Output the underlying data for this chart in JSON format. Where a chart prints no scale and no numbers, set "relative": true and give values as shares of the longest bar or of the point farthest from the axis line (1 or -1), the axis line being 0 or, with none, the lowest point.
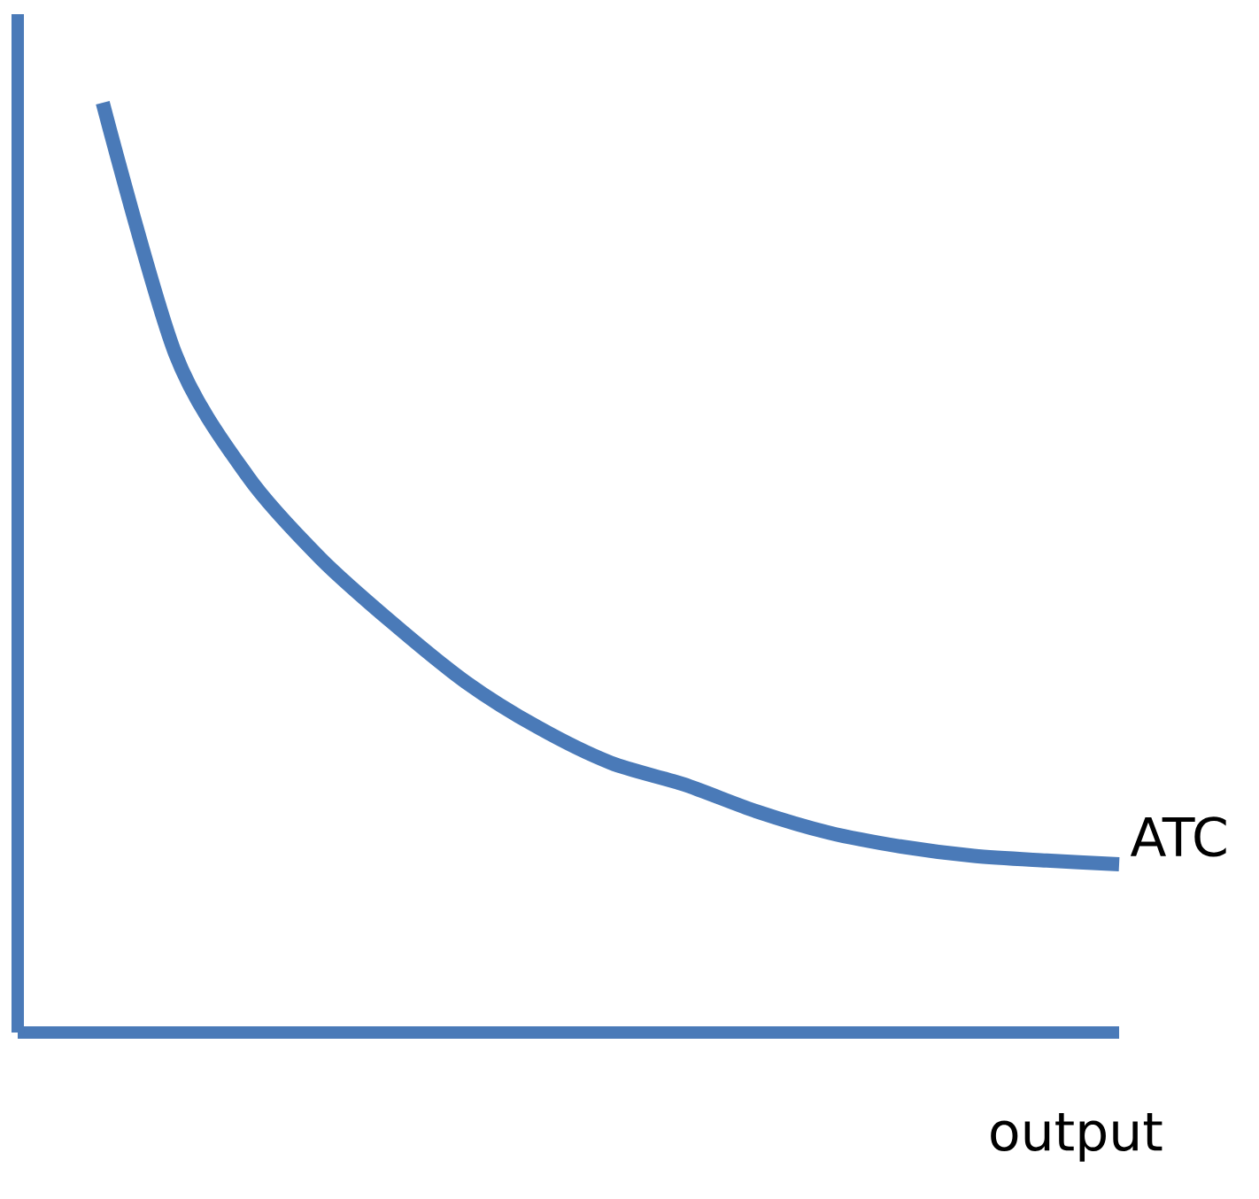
{
  "chart_data": {
    "type": "line",
    "xlabel": "output",
    "relative": true,
    "categories": [
      null,
      null,
      null,
      null,
      null,
      null,
      null,
      null,
      null,
      null,
      null,
      null,
      null,
      null,
      null
    ],
    "series": [
      {
        "name": "ATC",
        "color": "#4a7ab8",
        "values": [
          1.0,
          0.73,
          0.598,
          0.51,
          0.44,
          0.377,
          0.328,
          0.29,
          0.267,
          0.238,
          0.215,
          0.2,
          0.19,
          0.185,
          0.181
        ]
      }
    ]
  }
}
